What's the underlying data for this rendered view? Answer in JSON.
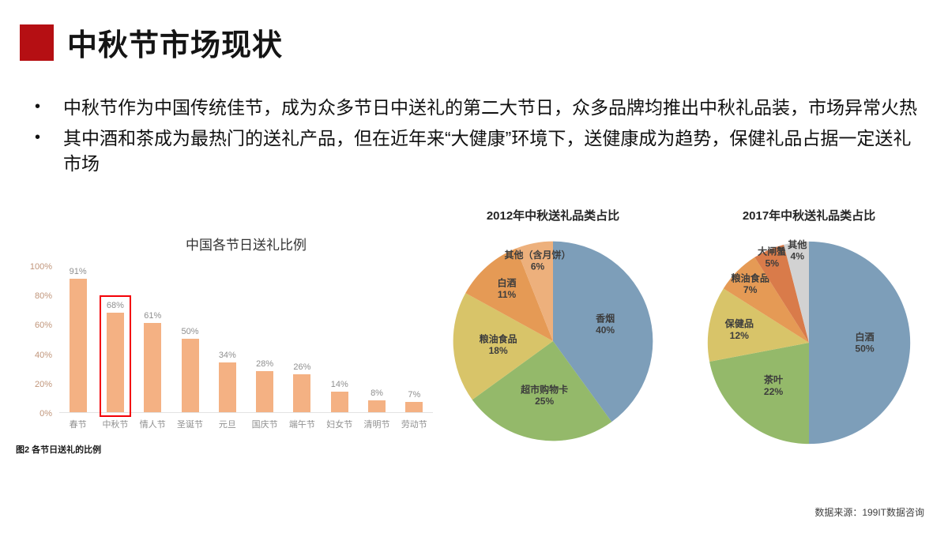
{
  "slide": {
    "title": "中秋节市场现状",
    "bullets": [
      "中秋节作为中国传统佳节，成为众多节日中送礼的第二大节日，众多品牌均推出中秋礼品装，市场异常火热",
      "其中酒和茶成为最热门的送礼产品，但在近年来“大健康”环境下，送健康成为趋势，保健礼品占据一定送礼市场"
    ],
    "source": "数据来源：199IT数据咨询"
  },
  "chart_data": [
    {
      "type": "bar",
      "title": "中国各节日送礼比例",
      "caption": "图2  各节日送礼的比例",
      "categories": [
        "春节",
        "中秋节",
        "情人节",
        "圣诞节",
        "元旦",
        "国庆节",
        "端午节",
        "妇女节",
        "清明节",
        "劳动节"
      ],
      "values": [
        91,
        68,
        61,
        50,
        34,
        28,
        26,
        14,
        8,
        7
      ],
      "value_suffix": "%",
      "ylim": [
        0,
        100
      ],
      "yticks": [
        "0%",
        "20%",
        "40%",
        "60%",
        "80%",
        "100%"
      ],
      "grid": false,
      "bar_color": "#f4b183",
      "highlight_index": 1,
      "highlight_color": "#f30006"
    },
    {
      "type": "pie",
      "title": "2012年中秋送礼品类占比",
      "slices": [
        {
          "label": "香烟",
          "value": 40,
          "color": "#7d9eb9"
        },
        {
          "label": "超市购物卡",
          "value": 25,
          "color": "#94b96a"
        },
        {
          "label": "粮油食品",
          "value": 18,
          "color": "#d8c469"
        },
        {
          "label": "白酒",
          "value": 11,
          "color": "#e59a55"
        },
        {
          "label": "其他（含月饼）",
          "value": 6,
          "color": "#edb07c"
        }
      ]
    },
    {
      "type": "pie",
      "title": "2017年中秋送礼品类占比",
      "slices": [
        {
          "label": "白酒",
          "value": 50,
          "color": "#7d9eb9"
        },
        {
          "label": "茶叶",
          "value": 22,
          "color": "#94b96a"
        },
        {
          "label": "保健品",
          "value": 12,
          "color": "#d8c469"
        },
        {
          "label": "粮油食品",
          "value": 7,
          "color": "#e59a55"
        },
        {
          "label": "大闸蟹",
          "value": 5,
          "color": "#d97b4a"
        },
        {
          "label": "其他",
          "value": 4,
          "color": "#d2d2d2"
        }
      ]
    }
  ]
}
